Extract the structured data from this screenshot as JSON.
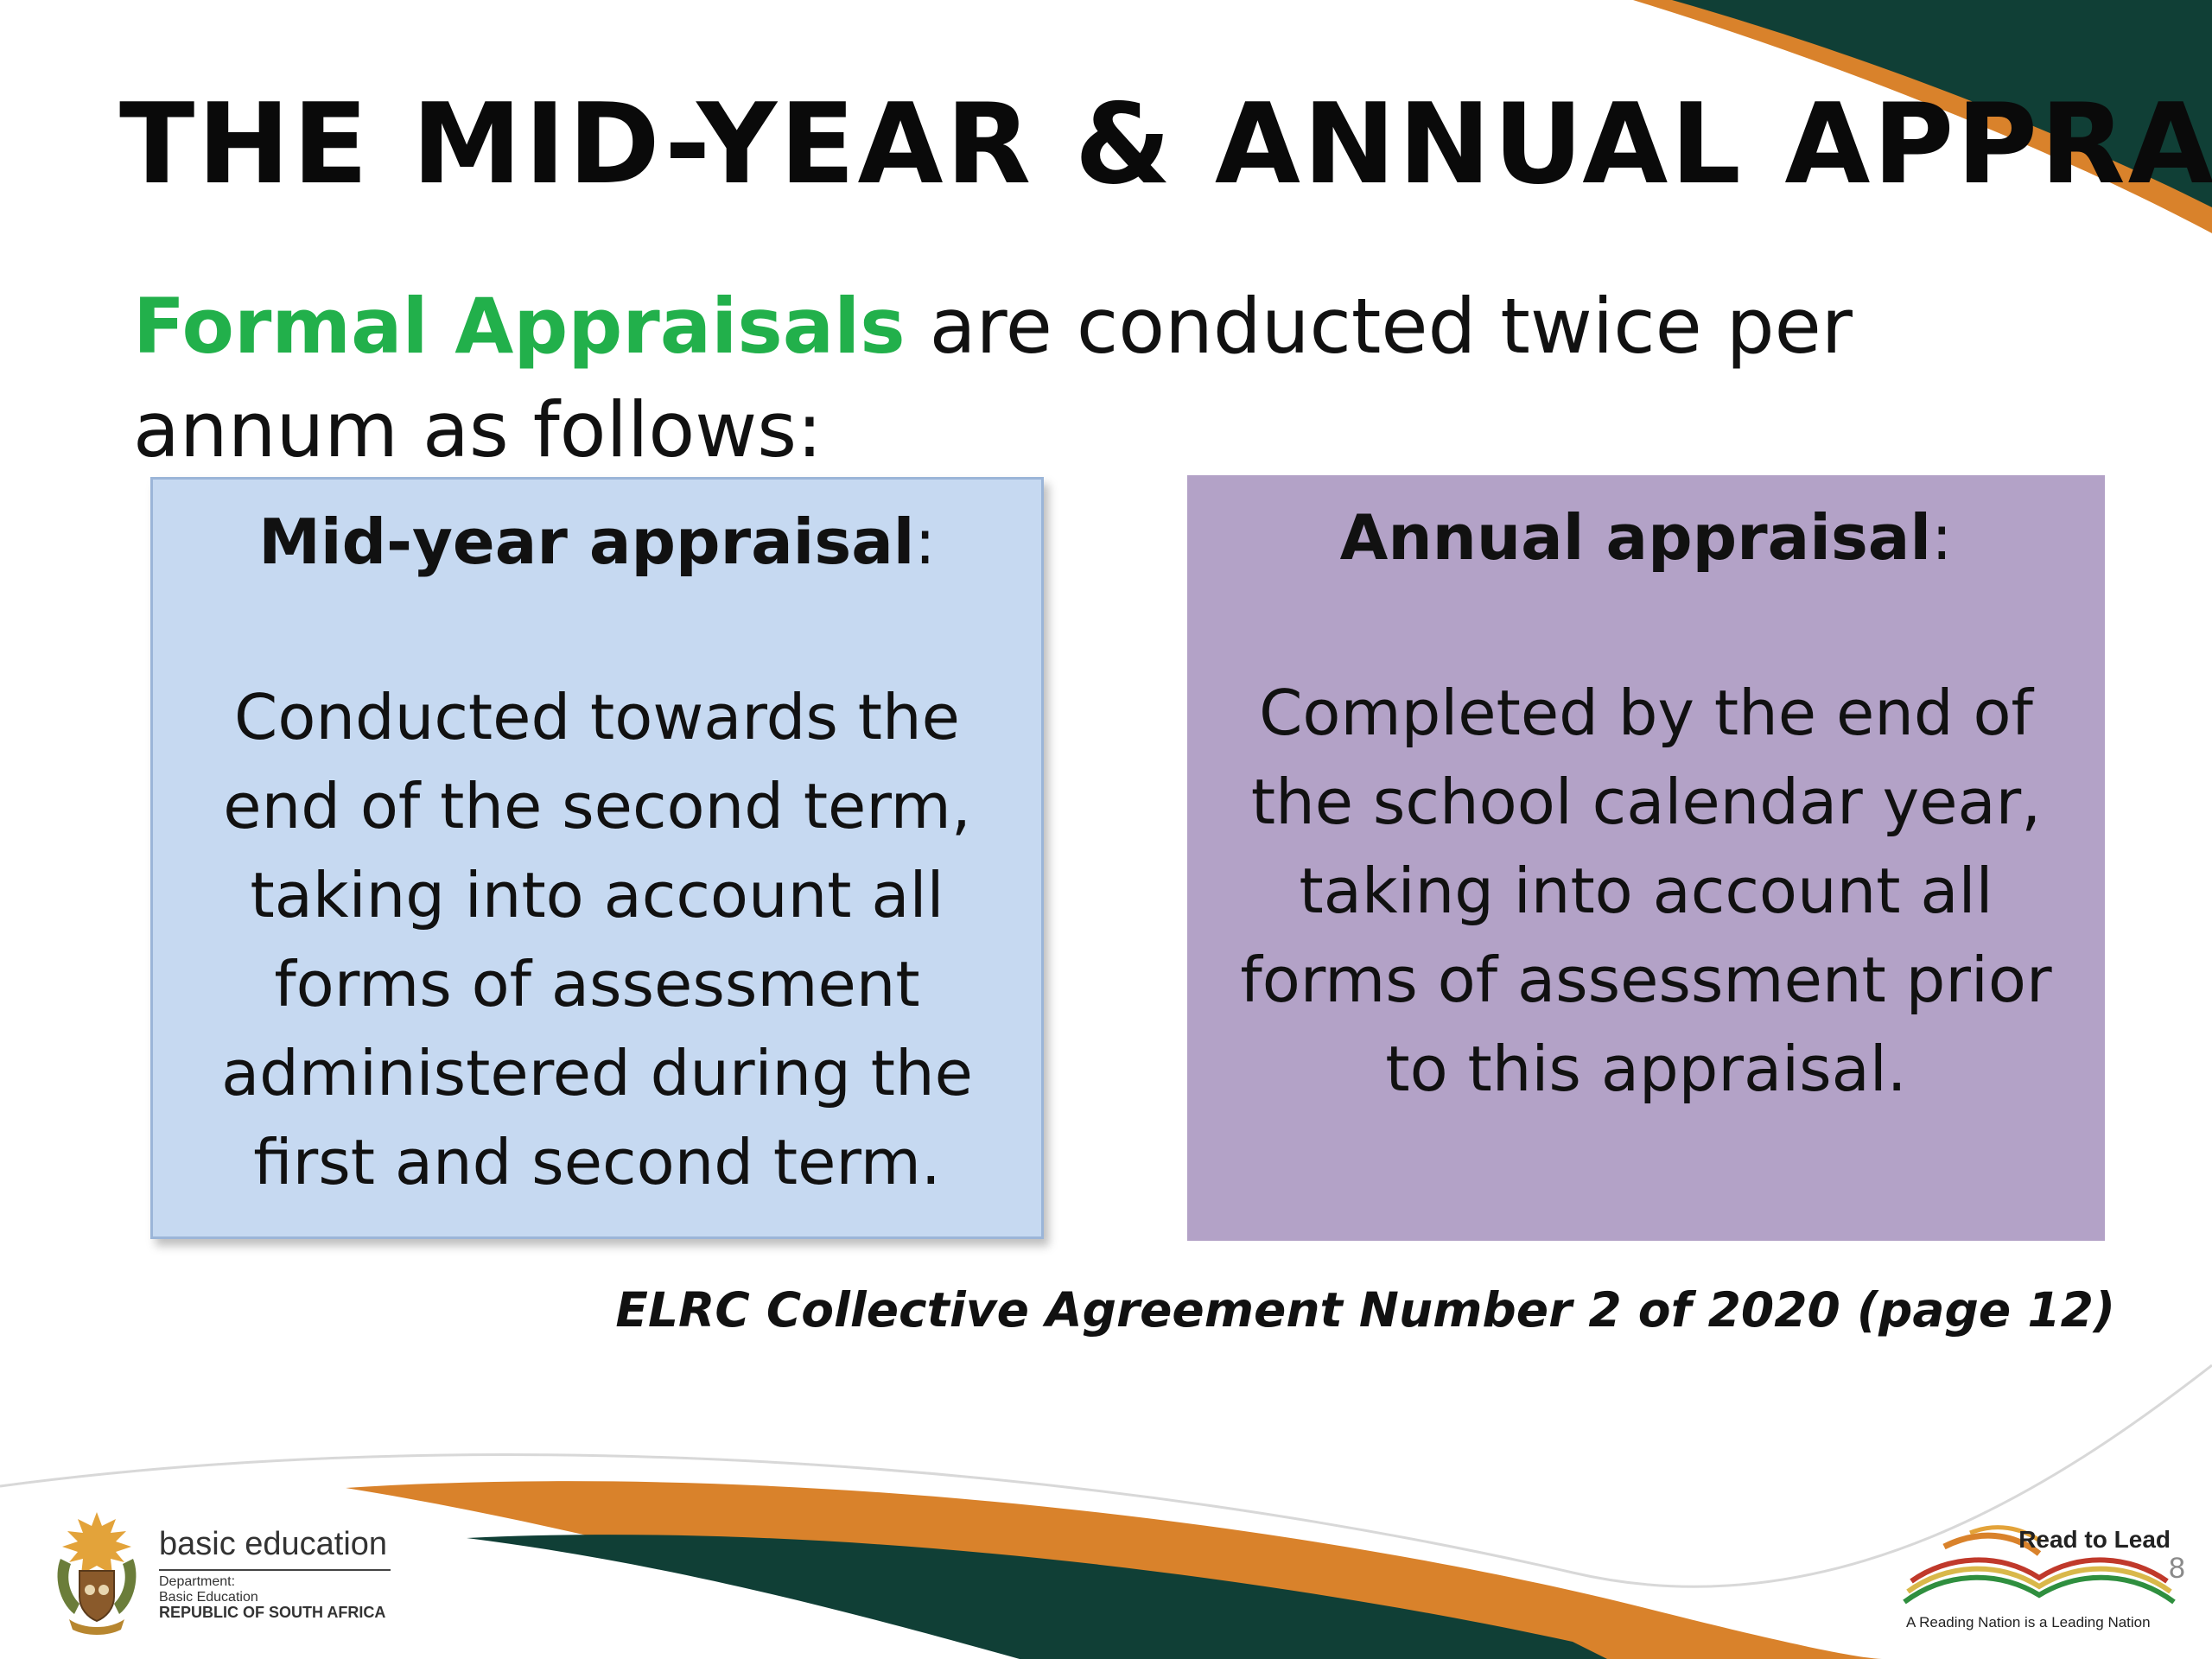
{
  "slide": {
    "title": "THE MID-YEAR & ANNUAL APPRAISAL",
    "intro": {
      "highlight": "Formal Appraisals",
      "rest": " are conducted twice per annum as follows:"
    },
    "mid_year": {
      "heading": "Mid-year appraisal",
      "heading_suffix": ":",
      "body": "Conducted towards the end of the second term, taking into account all forms of assessment administered during the first and second term."
    },
    "annual": {
      "heading": "Annual appraisal",
      "heading_suffix": ":",
      "body": "Completed by the end of the school calendar year, taking into account all forms of assessment prior to this appraisal."
    },
    "citation": "ELRC Collective Agreement Number 2 of 2020 (page 12)",
    "page_number": "8"
  },
  "logos": {
    "department": {
      "title": "basic education",
      "line1": "Department:",
      "line2": "Basic Education",
      "country": "REPUBLIC OF SOUTH AFRICA"
    },
    "read_to_lead": {
      "title": "Read to Lead",
      "tagline": "A Reading Nation is a Leading Nation"
    }
  },
  "colors": {
    "highlight_green": "#22b04b",
    "mid_year_box": "#c6d9f1",
    "annual_box": "#b3a2c7",
    "swoosh_dark_green": "#103f36",
    "swoosh_orange": "#d9822b"
  }
}
